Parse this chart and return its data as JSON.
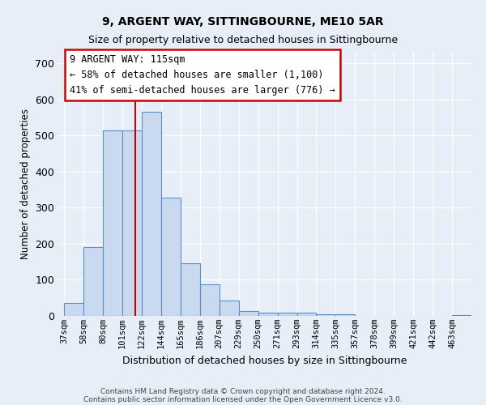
{
  "title": "9, ARGENT WAY, SITTINGBOURNE, ME10 5AR",
  "subtitle": "Size of property relative to detached houses in Sittingbourne",
  "xlabel": "Distribution of detached houses by size in Sittingbourne",
  "ylabel": "Number of detached properties",
  "categories": [
    "37sqm",
    "58sqm",
    "80sqm",
    "101sqm",
    "122sqm",
    "144sqm",
    "165sqm",
    "186sqm",
    "207sqm",
    "229sqm",
    "250sqm",
    "271sqm",
    "293sqm",
    "314sqm",
    "335sqm",
    "357sqm",
    "378sqm",
    "399sqm",
    "421sqm",
    "442sqm",
    "463sqm"
  ],
  "values": [
    35,
    190,
    515,
    515,
    565,
    328,
    145,
    88,
    42,
    14,
    10,
    10,
    10,
    5,
    5,
    0,
    0,
    0,
    0,
    0,
    2
  ],
  "bar_color": "#c9d9f0",
  "bar_edge_color": "#5a8fc4",
  "background_color": "#e8eef8",
  "annotation_title": "9 ARGENT WAY: 115sqm",
  "annotation_line1": "← 58% of detached houses are smaller (1,100)",
  "annotation_line2": "41% of semi-detached houses are larger (776) →",
  "footer_line1": "Contains HM Land Registry data © Crown copyright and database right 2024.",
  "footer_line2": "Contains public sector information licensed under the Open Government Licence v3.0.",
  "ylim": [
    0,
    730
  ],
  "title_fontsize": 10,
  "subtitle_fontsize": 9,
  "annotation_box_color": "#ffffff",
  "annotation_box_edge": "#cc0000"
}
